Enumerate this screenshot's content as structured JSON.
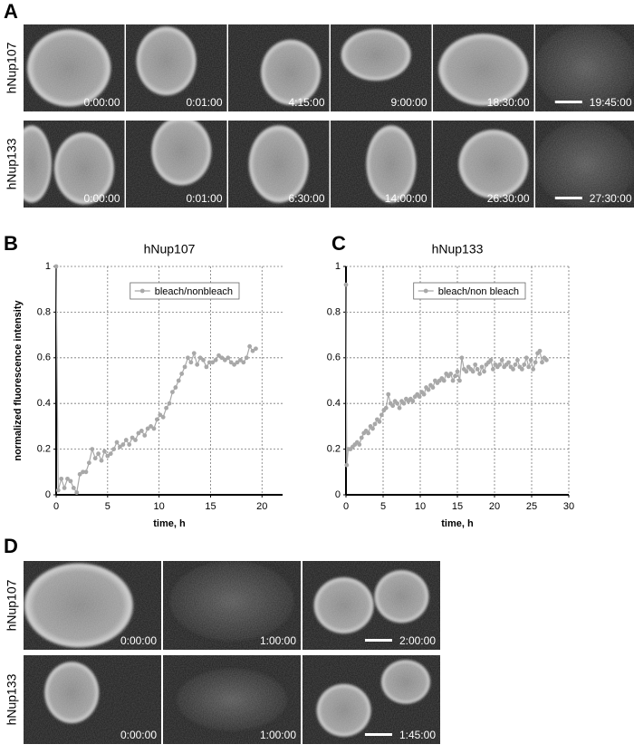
{
  "figure": {
    "panel_a": {
      "label": "A",
      "rows": [
        {
          "name": "hNup107",
          "times": [
            "0:00:00",
            "0:01:00",
            "4:15:00",
            "9:00:00",
            "18:30:00",
            "19:45:00"
          ]
        },
        {
          "name": "hNup133",
          "times": [
            "0:00:00",
            "0:01:00",
            "6:30:00",
            "14:00:00",
            "26:30:00",
            "27:30:00"
          ]
        }
      ]
    },
    "panel_b": {
      "label": "B"
    },
    "panel_c": {
      "label": "C"
    },
    "panel_d": {
      "label": "D",
      "rows": [
        {
          "name": "hNup107",
          "times": [
            "0:00:00",
            "1:00:00",
            "2:00:00"
          ]
        },
        {
          "name": "hNup133",
          "times": [
            "0:00:00",
            "1:00:00",
            "1:45:00"
          ]
        }
      ]
    }
  },
  "chart_data": [
    {
      "type": "line",
      "title": "hNup107",
      "xlabel": "time, h",
      "ylabel": "normalized fluorescence intensity",
      "x": [
        0,
        0.2,
        0.5,
        0.8,
        1.1,
        1.4,
        1.7,
        2.0,
        2.3,
        2.6,
        2.9,
        3.2,
        3.5,
        3.8,
        4.1,
        4.4,
        4.7,
        5.0,
        5.3,
        5.6,
        5.9,
        6.2,
        6.5,
        6.8,
        7.1,
        7.4,
        7.7,
        8.0,
        8.3,
        8.6,
        8.9,
        9.2,
        9.5,
        9.8,
        10.1,
        10.4,
        10.7,
        11.0,
        11.3,
        11.6,
        11.9,
        12.2,
        12.5,
        12.8,
        13.1,
        13.4,
        13.7,
        14.0,
        14.3,
        14.6,
        14.9,
        15.2,
        15.5,
        15.8,
        16.1,
        16.4,
        16.7,
        17.0,
        17.3,
        17.6,
        17.9,
        18.2,
        18.5,
        18.8,
        19.1,
        19.4
      ],
      "series": [
        {
          "name": "bleach/nonbleach",
          "color": "#a8a8a8",
          "values": [
            1,
            0.02,
            0.07,
            0.03,
            0.07,
            0.06,
            0.03,
            0.01,
            0.09,
            0.1,
            0.1,
            0.14,
            0.2,
            0.16,
            0.18,
            0.15,
            0.19,
            0.17,
            0.18,
            0.2,
            0.23,
            0.21,
            0.22,
            0.24,
            0.22,
            0.25,
            0.24,
            0.27,
            0.28,
            0.26,
            0.29,
            0.3,
            0.29,
            0.33,
            0.35,
            0.34,
            0.38,
            0.4,
            0.45,
            0.47,
            0.5,
            0.53,
            0.56,
            0.6,
            0.58,
            0.62,
            0.57,
            0.6,
            0.59,
            0.56,
            0.58,
            0.58,
            0.59,
            0.61,
            0.6,
            0.59,
            0.6,
            0.58,
            0.57,
            0.58,
            0.59,
            0.58,
            0.6,
            0.65,
            0.63,
            0.64
          ]
        }
      ],
      "xlim": [
        0,
        22
      ],
      "ylim": [
        0,
        1
      ],
      "xticks": [
        0,
        5,
        10,
        15,
        20
      ],
      "yticks": [
        0,
        0.2,
        0.4,
        0.6,
        0.8,
        1
      ],
      "grid": true,
      "legend": "top-right"
    },
    {
      "type": "line",
      "title": "hNup133",
      "xlabel": "time, h",
      "x": [
        0,
        0.1,
        0.3,
        0.6,
        0.9,
        1.2,
        1.5,
        1.8,
        2.1,
        2.4,
        2.7,
        3.0,
        3.3,
        3.6,
        3.9,
        4.2,
        4.5,
        4.8,
        5.1,
        5.4,
        5.7,
        6.0,
        6.3,
        6.6,
        6.9,
        7.2,
        7.5,
        7.8,
        8.1,
        8.4,
        8.7,
        9.0,
        9.3,
        9.6,
        9.9,
        10.2,
        10.5,
        10.8,
        11.1,
        11.4,
        11.7,
        12.0,
        12.3,
        12.6,
        12.9,
        13.2,
        13.5,
        13.8,
        14.1,
        14.4,
        14.7,
        15.0,
        15.3,
        15.6,
        15.9,
        16.2,
        16.5,
        16.8,
        17.1,
        17.4,
        17.7,
        18.0,
        18.3,
        18.6,
        18.9,
        19.2,
        19.5,
        19.8,
        20.1,
        20.4,
        20.7,
        21.0,
        21.3,
        21.6,
        21.9,
        22.2,
        22.5,
        22.8,
        23.1,
        23.4,
        23.7,
        24.0,
        24.3,
        24.6,
        24.9,
        25.2,
        25.5,
        25.8,
        26.1,
        26.4,
        26.7,
        27.0
      ],
      "series": [
        {
          "name": "bleach/non bleach",
          "color": "#a8a8a8",
          "values": [
            0.92,
            0.13,
            0.2,
            0.2,
            0.21,
            0.22,
            0.23,
            0.22,
            0.25,
            0.27,
            0.28,
            0.27,
            0.3,
            0.29,
            0.31,
            0.33,
            0.32,
            0.35,
            0.37,
            0.38,
            0.44,
            0.4,
            0.39,
            0.41,
            0.4,
            0.38,
            0.41,
            0.4,
            0.42,
            0.41,
            0.42,
            0.41,
            0.43,
            0.44,
            0.43,
            0.45,
            0.44,
            0.47,
            0.46,
            0.48,
            0.47,
            0.5,
            0.49,
            0.5,
            0.51,
            0.5,
            0.53,
            0.52,
            0.53,
            0.5,
            0.52,
            0.54,
            0.5,
            0.6,
            0.55,
            0.54,
            0.56,
            0.55,
            0.54,
            0.57,
            0.55,
            0.53,
            0.56,
            0.54,
            0.57,
            0.58,
            0.59,
            0.55,
            0.57,
            0.56,
            0.57,
            0.59,
            0.56,
            0.57,
            0.58,
            0.56,
            0.55,
            0.57,
            0.59,
            0.56,
            0.55,
            0.57,
            0.6,
            0.56,
            0.59,
            0.55,
            0.58,
            0.62,
            0.63,
            0.58,
            0.6,
            0.59
          ]
        }
      ],
      "xlim": [
        0,
        30
      ],
      "ylim": [
        0,
        1
      ],
      "xticks": [
        0,
        5,
        10,
        15,
        20,
        25,
        30
      ],
      "yticks": [
        0,
        0.2,
        0.4,
        0.6,
        0.8,
        1
      ],
      "grid": true,
      "legend": "top-right"
    }
  ]
}
